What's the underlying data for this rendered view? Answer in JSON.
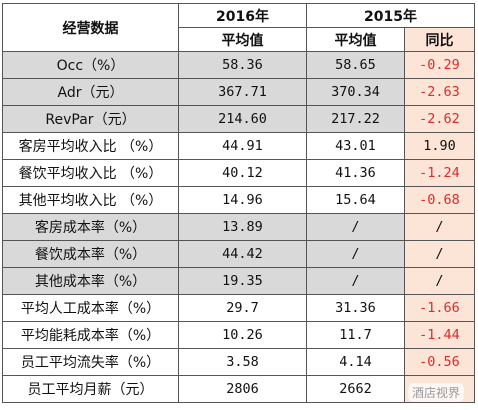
{
  "header": {
    "title": "经营数据",
    "year_2016": "2016年",
    "year_2015": "2015年",
    "avg_2016": "平均值",
    "avg_2015": "平均值",
    "yoy": "同比"
  },
  "table": {
    "rows": [
      [
        "Occ（%）",
        "58.36",
        "58.65",
        "-0.29"
      ],
      [
        "Adr（元）",
        "367.71",
        "370.34",
        "-2.63"
      ],
      [
        "RevPar（元）",
        "214.60",
        "217.22",
        "-2.62"
      ],
      [
        "客房平均收入比 （%）",
        "44.91",
        "43.01",
        "1.90"
      ],
      [
        "餐饮平均收入比 （%）",
        "40.12",
        "41.36",
        "-1.24"
      ],
      [
        "其他平均收入比 （%）",
        "14.96",
        "15.64",
        "-0.68"
      ],
      [
        "客房成本率（%）",
        "13.89",
        "/",
        "/"
      ],
      [
        "餐饮成本率（%）",
        "44.42",
        "/",
        "/"
      ],
      [
        "其他成本率（%）",
        "19.35",
        "/",
        "/"
      ],
      [
        "平均人工成本率（%）",
        "29.7",
        "31.36",
        "-1.66"
      ],
      [
        "平均能耗成本率（%）",
        "10.26",
        "11.7",
        "-1.44"
      ],
      [
        "员工平均流失率（%）",
        "3.58",
        "4.14",
        "-0.56"
      ],
      [
        "员工平均月薪（元）",
        "2806",
        "2662"
      ]
    ],
    "shaded_rows": [
      0,
      1,
      2,
      6,
      7,
      8
    ],
    "shade_color": "#d9d9d9",
    "yoy_color": "#fce4d6",
    "negative_color": "#e02b2b"
  },
  "watermark": "酒店视界"
}
